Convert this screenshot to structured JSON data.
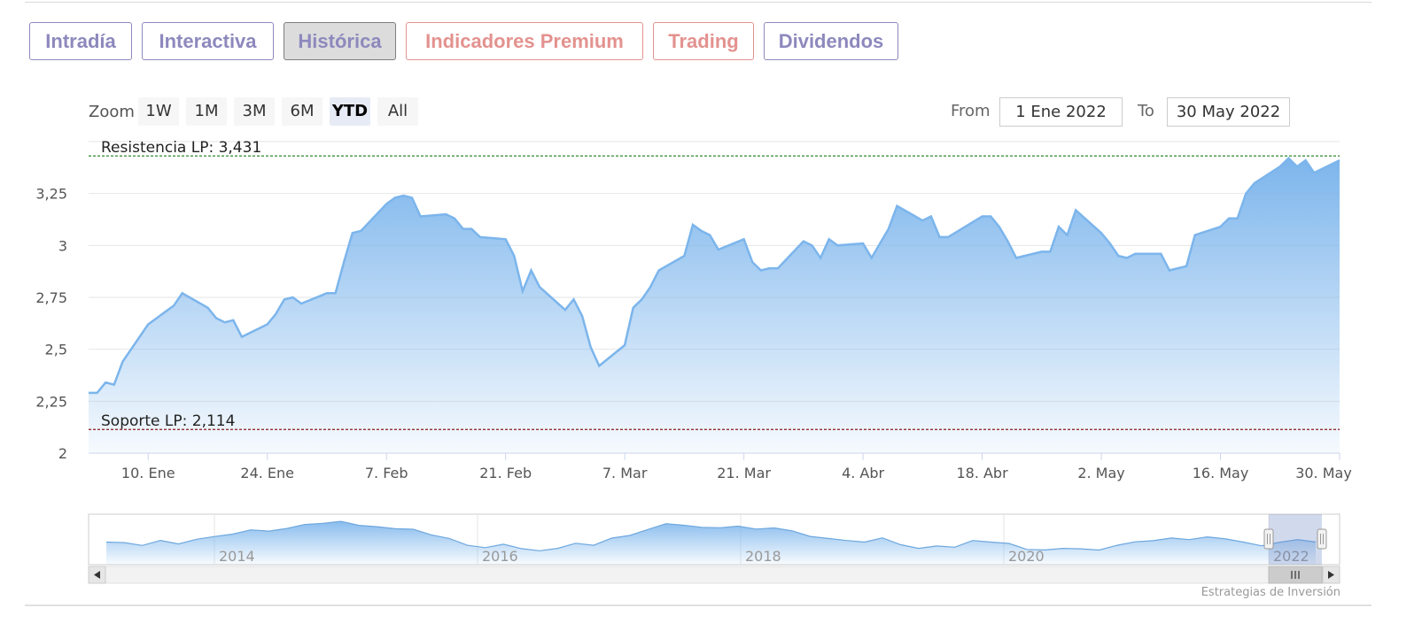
{
  "tabs": [
    {
      "label": "Intradía",
      "style": "purple"
    },
    {
      "label": "Interactiva",
      "style": "purple"
    },
    {
      "label": "Histórica",
      "style": "active"
    },
    {
      "label": "Indicadores Premium",
      "style": "red"
    },
    {
      "label": "Trading",
      "style": "red"
    },
    {
      "label": "Dividendos",
      "style": "purple"
    }
  ],
  "zoom": {
    "label": "Zoom",
    "buttons": [
      "1W",
      "1M",
      "3M",
      "6M",
      "YTD",
      "All"
    ],
    "selected": "YTD"
  },
  "range": {
    "from_label": "From",
    "from_value": "1 Ene 2022",
    "to_label": "To",
    "to_value": "30 May 2022"
  },
  "colors": {
    "line": "#7cb5ec",
    "resistance": "#1a7a1a",
    "support": "#8b1a1a",
    "tab_purple": "#8d89bd",
    "tab_red": "#e3928f"
  },
  "chart_data": {
    "type": "area",
    "x_start": "2022-01-03",
    "x_end": "2022-05-30",
    "ylim": [
      2,
      3.5
    ],
    "yticks": [
      "3,25",
      "3",
      "2,75",
      "2,5",
      "2,25",
      "2"
    ],
    "xticks": [
      "10. Ene",
      "24. Ene",
      "7. Feb",
      "21. Feb",
      "7. Mar",
      "21. Mar",
      "4. Abr",
      "18. Abr",
      "2. May",
      "16. May",
      "30. May"
    ],
    "series": [
      {
        "x": [
          "2022-01-03",
          "2022-01-04",
          "2022-01-05",
          "2022-01-06",
          "2022-01-07",
          "2022-01-10",
          "2022-01-11",
          "2022-01-12",
          "2022-01-13",
          "2022-01-14",
          "2022-01-17",
          "2022-01-18",
          "2022-01-19",
          "2022-01-20",
          "2022-01-21",
          "2022-01-24",
          "2022-01-25",
          "2022-01-26",
          "2022-01-27",
          "2022-01-28",
          "2022-01-31",
          "2022-02-01",
          "2022-02-02",
          "2022-02-03",
          "2022-02-04",
          "2022-02-07",
          "2022-02-08",
          "2022-02-09",
          "2022-02-10",
          "2022-02-11",
          "2022-02-14",
          "2022-02-15",
          "2022-02-16",
          "2022-02-17",
          "2022-02-18",
          "2022-02-21",
          "2022-02-22",
          "2022-02-23",
          "2022-02-24",
          "2022-02-25",
          "2022-02-28",
          "2022-03-01",
          "2022-03-02",
          "2022-03-03",
          "2022-03-04",
          "2022-03-07",
          "2022-03-08",
          "2022-03-09",
          "2022-03-10",
          "2022-03-11",
          "2022-03-14",
          "2022-03-15",
          "2022-03-16",
          "2022-03-17",
          "2022-03-18",
          "2022-03-21",
          "2022-03-22",
          "2022-03-23",
          "2022-03-24",
          "2022-03-25",
          "2022-03-28",
          "2022-03-29",
          "2022-03-30",
          "2022-03-31",
          "2022-04-01",
          "2022-04-04",
          "2022-04-05",
          "2022-04-06",
          "2022-04-07",
          "2022-04-08",
          "2022-04-11",
          "2022-04-12",
          "2022-04-13",
          "2022-04-14",
          "2022-04-18",
          "2022-04-19",
          "2022-04-20",
          "2022-04-21",
          "2022-04-22",
          "2022-04-25",
          "2022-04-26",
          "2022-04-27",
          "2022-04-28",
          "2022-04-29",
          "2022-05-02",
          "2022-05-03",
          "2022-05-04",
          "2022-05-05",
          "2022-05-06",
          "2022-05-09",
          "2022-05-10",
          "2022-05-11",
          "2022-05-12",
          "2022-05-13",
          "2022-05-16",
          "2022-05-17",
          "2022-05-18",
          "2022-05-19",
          "2022-05-20",
          "2022-05-23",
          "2022-05-24",
          "2022-05-25",
          "2022-05-26",
          "2022-05-27",
          "2022-05-30"
        ],
        "values": [
          2.29,
          2.29,
          2.34,
          2.33,
          2.44,
          2.62,
          2.65,
          2.68,
          2.71,
          2.77,
          2.7,
          2.65,
          2.63,
          2.64,
          2.56,
          2.62,
          2.67,
          2.74,
          2.75,
          2.72,
          2.77,
          2.77,
          2.92,
          3.06,
          3.07,
          3.2,
          3.23,
          3.24,
          3.23,
          3.14,
          3.15,
          3.13,
          3.08,
          3.08,
          3.04,
          3.03,
          2.95,
          2.78,
          2.88,
          2.8,
          2.69,
          2.74,
          2.66,
          2.51,
          2.42,
          2.52,
          2.7,
          2.74,
          2.8,
          2.88,
          2.95,
          3.1,
          3.07,
          3.05,
          2.98,
          3.03,
          2.92,
          2.88,
          2.89,
          2.89,
          3.02,
          3.0,
          2.94,
          3.03,
          3.0,
          3.01,
          2.94,
          3.01,
          3.08,
          3.19,
          3.12,
          3.14,
          3.04,
          3.04,
          3.14,
          3.14,
          3.09,
          3.02,
          2.94,
          2.97,
          2.97,
          3.09,
          3.05,
          3.17,
          3.06,
          3.01,
          2.95,
          2.94,
          2.96,
          2.96,
          2.88,
          2.89,
          2.9,
          3.05,
          3.09,
          3.13,
          3.13,
          3.25,
          3.3,
          3.38,
          3.42,
          3.38,
          3.41,
          3.35,
          3.41
        ]
      }
    ],
    "plot_lines": [
      {
        "label": "Resistencia LP: 3,431",
        "value": 3.431
      },
      {
        "label": "Soporte LP: 2,114",
        "value": 2.114
      }
    ],
    "navigator": {
      "years": [
        "2014",
        "2016",
        "2018",
        "2020",
        "2022"
      ],
      "profile": [
        0.4,
        0.38,
        0.3,
        0.42,
        0.35,
        0.46,
        0.52,
        0.6,
        0.7,
        0.66,
        0.72,
        0.84,
        0.86,
        0.9,
        0.82,
        0.78,
        0.72,
        0.7,
        0.58,
        0.48,
        0.3,
        0.26,
        0.34,
        0.22,
        0.16,
        0.24,
        0.36,
        0.3,
        0.5,
        0.56,
        0.7,
        0.84,
        0.82,
        0.76,
        0.74,
        0.8,
        0.72,
        0.74,
        0.66,
        0.54,
        0.48,
        0.42,
        0.4,
        0.5,
        0.32,
        0.22,
        0.3,
        0.26,
        0.42,
        0.4,
        0.36,
        0.2,
        0.18,
        0.24,
        0.22,
        0.18,
        0.32,
        0.4,
        0.42,
        0.48,
        0.46,
        0.52,
        0.46,
        0.4,
        0.3,
        0.38,
        0.44,
        0.4
      ]
    }
  },
  "credit": "Estrategias de Inversión"
}
